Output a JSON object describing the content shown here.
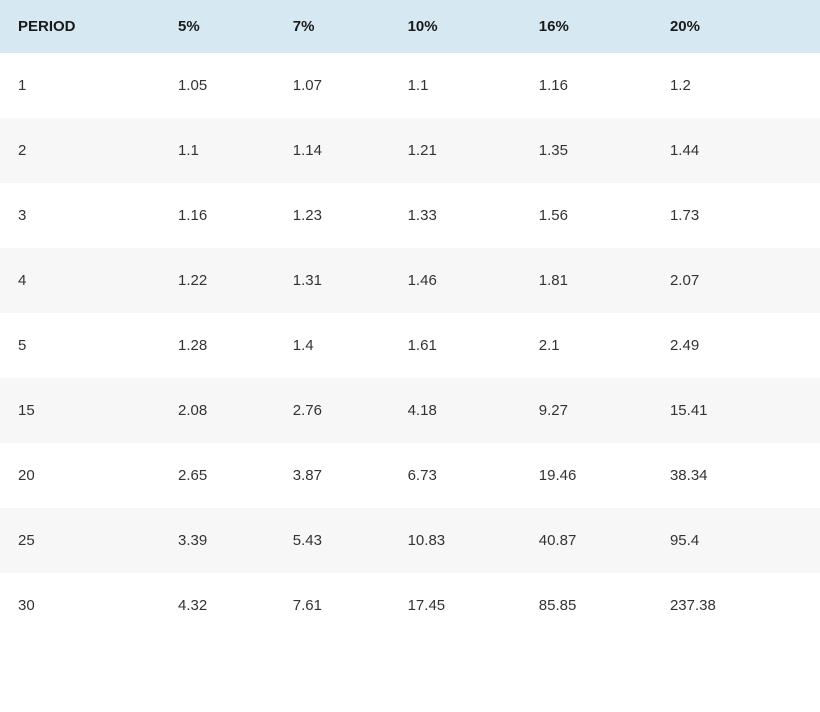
{
  "table": {
    "type": "table",
    "header_background": "#d6e9f3",
    "header_text_color": "#1a1a1a",
    "header_fontsize": 15,
    "header_fontweight": 700,
    "body_text_color": "#333333",
    "body_fontsize": 15,
    "body_fontweight": 400,
    "row_stripe_odd": "#ffffff",
    "row_stripe_even": "#f7f7f7",
    "column_widths_pct": [
      20,
      14,
      14,
      16,
      16,
      20
    ],
    "columns": [
      "PERIOD",
      "5%",
      "7%",
      "10%",
      "16%",
      "20%"
    ],
    "rows": [
      [
        "1",
        "1.05",
        "1.07",
        "1.1",
        "1.16",
        "1.2"
      ],
      [
        "2",
        "1.1",
        "1.14",
        "1.21",
        "1.35",
        "1.44"
      ],
      [
        "3",
        "1.16",
        "1.23",
        "1.33",
        "1.56",
        "1.73"
      ],
      [
        "4",
        "1.22",
        "1.31",
        "1.46",
        "1.81",
        "2.07"
      ],
      [
        "5",
        "1.28",
        "1.4",
        "1.61",
        "2.1",
        "2.49"
      ],
      [
        "15",
        "2.08",
        "2.76",
        "4.18",
        "9.27",
        "15.41"
      ],
      [
        "20",
        "2.65",
        "3.87",
        "6.73",
        "19.46",
        "38.34"
      ],
      [
        "25",
        "3.39",
        "5.43",
        "10.83",
        "40.87",
        "95.4"
      ],
      [
        "30",
        "4.32",
        "7.61",
        "17.45",
        "85.85",
        "237.38"
      ]
    ]
  }
}
